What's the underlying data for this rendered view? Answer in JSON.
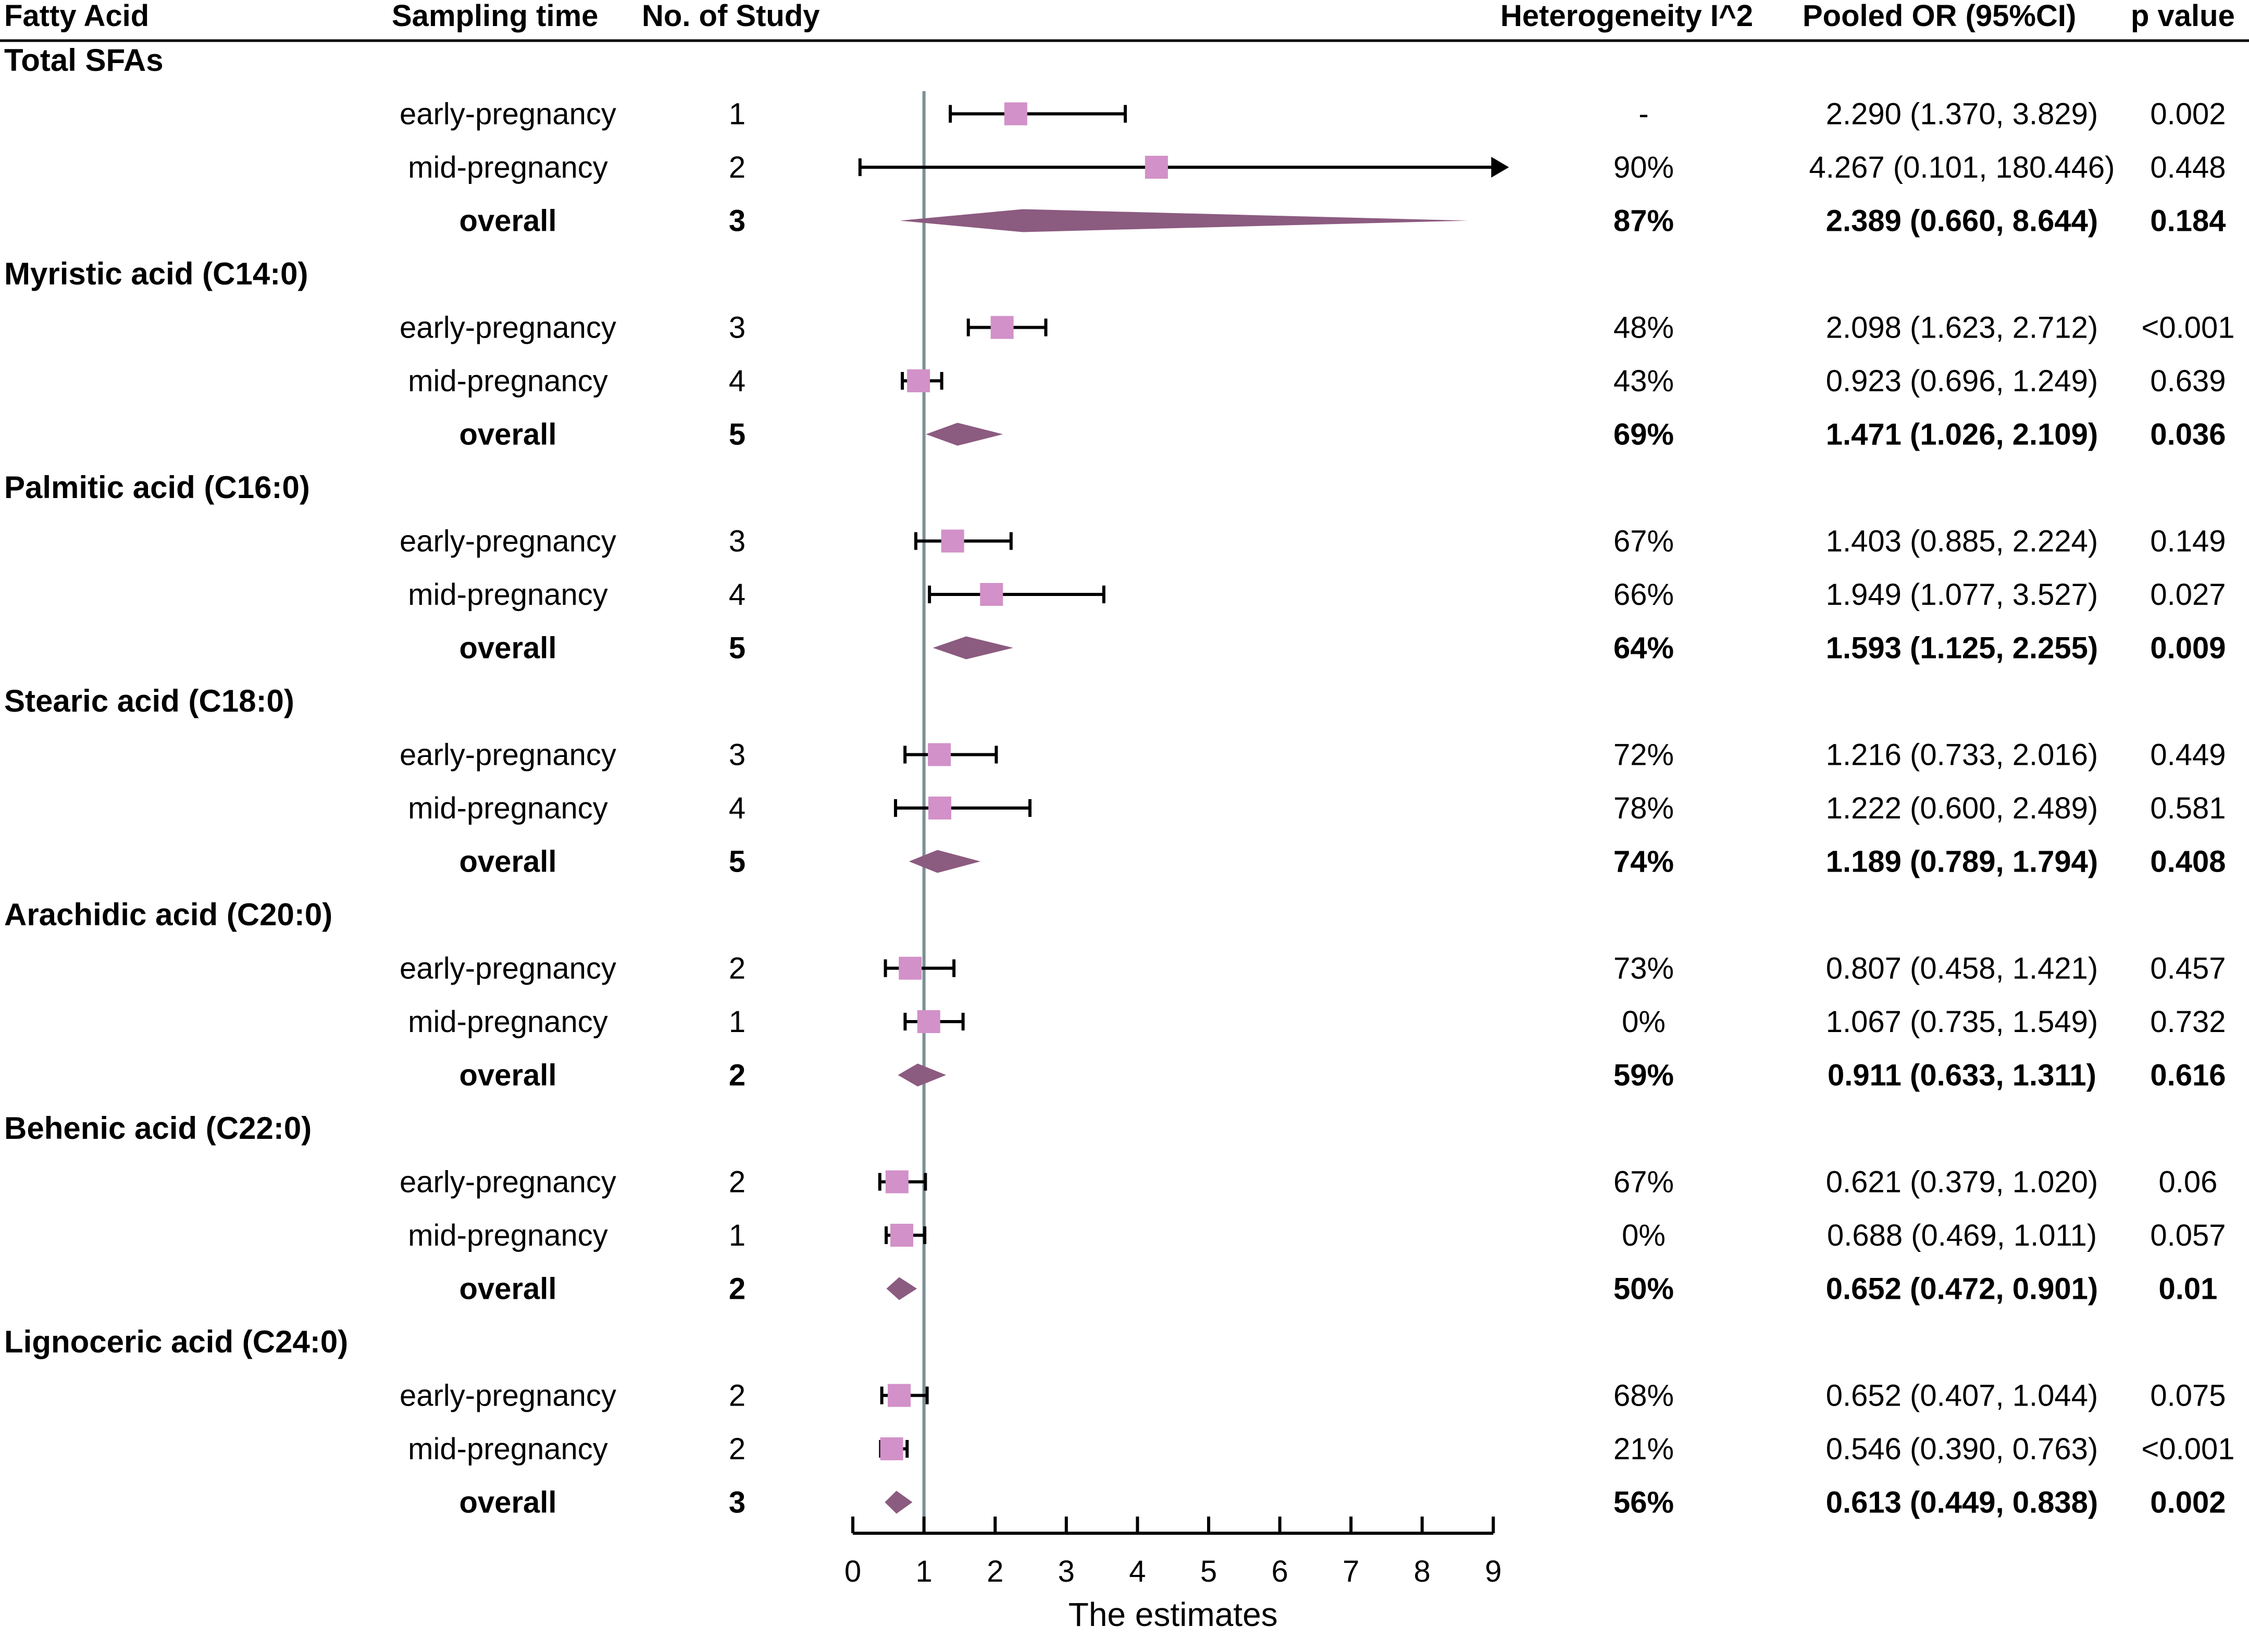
{
  "headers": {
    "fatty_acid": "Fatty Acid",
    "sampling_time": "Sampling time",
    "no_of_study": "No. of Study",
    "heterogeneity": "Heterogeneity I^2",
    "pooled_or": "Pooled OR (95%CI)",
    "p_value": "p value"
  },
  "chart_data": {
    "type": "forest",
    "xlabel": "The estimates",
    "xlim": [
      0,
      9
    ],
    "xticks": [
      "0",
      "1",
      "2",
      "3",
      "4",
      "5",
      "6",
      "7",
      "8",
      "9"
    ],
    "reference_line": 1,
    "colors": {
      "square": "#d291c8",
      "diamond": "#8c5b80",
      "refline": "#7a9095"
    },
    "groups": [
      {
        "name": "Total SFAs",
        "rows": [
          {
            "sampling": "early-pregnancy",
            "n": "1",
            "i2": "-",
            "ci_text": "2.290 (1.370, 3.829)",
            "p": "0.002",
            "est": 2.29,
            "lo": 1.37,
            "hi": 3.829,
            "overall": false
          },
          {
            "sampling": "mid-pregnancy",
            "n": "2",
            "i2": "90%",
            "ci_text": "4.267 (0.101, 180.446)",
            "p": "0.448",
            "est": 4.267,
            "lo": 0.101,
            "hi": 180.446,
            "overall": false
          },
          {
            "sampling": "overall",
            "n": "3",
            "i2": "87%",
            "ci_text": "2.389 (0.660, 8.644)",
            "p": "0.184",
            "est": 2.389,
            "lo": 0.66,
            "hi": 8.644,
            "overall": true
          }
        ]
      },
      {
        "name": "Myristic acid (C14:0)",
        "rows": [
          {
            "sampling": "early-pregnancy",
            "n": "3",
            "i2": "48%",
            "ci_text": "2.098 (1.623, 2.712)",
            "p": "<0.001",
            "est": 2.098,
            "lo": 1.623,
            "hi": 2.712,
            "overall": false
          },
          {
            "sampling": "mid-pregnancy",
            "n": "4",
            "i2": "43%",
            "ci_text": "0.923 (0.696, 1.249)",
            "p": "0.639",
            "est": 0.923,
            "lo": 0.696,
            "hi": 1.249,
            "overall": false
          },
          {
            "sampling": "overall",
            "n": "5",
            "i2": "69%",
            "ci_text": "1.471 (1.026, 2.109)",
            "p": "0.036",
            "est": 1.471,
            "lo": 1.026,
            "hi": 2.109,
            "overall": true
          }
        ]
      },
      {
        "name": "Palmitic acid (C16:0)",
        "rows": [
          {
            "sampling": "early-pregnancy",
            "n": "3",
            "i2": "67%",
            "ci_text": "1.403 (0.885, 2.224)",
            "p": "0.149",
            "est": 1.403,
            "lo": 0.885,
            "hi": 2.224,
            "overall": false
          },
          {
            "sampling": "mid-pregnancy",
            "n": "4",
            "i2": "66%",
            "ci_text": "1.949 (1.077, 3.527)",
            "p": "0.027",
            "est": 1.949,
            "lo": 1.077,
            "hi": 3.527,
            "overall": false
          },
          {
            "sampling": "overall",
            "n": "5",
            "i2": "64%",
            "ci_text": "1.593 (1.125, 2.255)",
            "p": "0.009",
            "est": 1.593,
            "lo": 1.125,
            "hi": 2.255,
            "overall": true
          }
        ]
      },
      {
        "name": "Stearic acid (C18:0)",
        "rows": [
          {
            "sampling": "early-pregnancy",
            "n": "3",
            "i2": "72%",
            "ci_text": "1.216 (0.733, 2.016)",
            "p": "0.449",
            "est": 1.216,
            "lo": 0.733,
            "hi": 2.016,
            "overall": false
          },
          {
            "sampling": "mid-pregnancy",
            "n": "4",
            "i2": "78%",
            "ci_text": "1.222 (0.600, 2.489)",
            "p": "0.581",
            "est": 1.222,
            "lo": 0.6,
            "hi": 2.489,
            "overall": false
          },
          {
            "sampling": "overall",
            "n": "5",
            "i2": "74%",
            "ci_text": "1.189 (0.789, 1.794)",
            "p": "0.408",
            "est": 1.189,
            "lo": 0.789,
            "hi": 1.794,
            "overall": true
          }
        ]
      },
      {
        "name": "Arachidic acid (C20:0)",
        "rows": [
          {
            "sampling": "early-pregnancy",
            "n": "2",
            "i2": "73%",
            "ci_text": "0.807 (0.458, 1.421)",
            "p": "0.457",
            "est": 0.807,
            "lo": 0.458,
            "hi": 1.421,
            "overall": false
          },
          {
            "sampling": "mid-pregnancy",
            "n": "1",
            "i2": "0%",
            "ci_text": "1.067 (0.735, 1.549)",
            "p": "0.732",
            "est": 1.067,
            "lo": 0.735,
            "hi": 1.549,
            "overall": false
          },
          {
            "sampling": "overall",
            "n": "2",
            "i2": "59%",
            "ci_text": "0.911 (0.633, 1.311)",
            "p": "0.616",
            "est": 0.911,
            "lo": 0.633,
            "hi": 1.311,
            "overall": true
          }
        ]
      },
      {
        "name": "Behenic acid (C22:0)",
        "rows": [
          {
            "sampling": "early-pregnancy",
            "n": "2",
            "i2": "67%",
            "ci_text": "0.621 (0.379, 1.020)",
            "p": "0.06",
            "est": 0.621,
            "lo": 0.379,
            "hi": 1.02,
            "overall": false
          },
          {
            "sampling": "mid-pregnancy",
            "n": "1",
            "i2": "0%",
            "ci_text": "0.688 (0.469, 1.011)",
            "p": "0.057",
            "est": 0.688,
            "lo": 0.469,
            "hi": 1.011,
            "overall": false
          },
          {
            "sampling": "overall",
            "n": "2",
            "i2": "50%",
            "ci_text": "0.652 (0.472, 0.901)",
            "p": "0.01",
            "est": 0.652,
            "lo": 0.472,
            "hi": 0.901,
            "overall": true
          }
        ]
      },
      {
        "name": "Lignoceric acid (C24:0)",
        "rows": [
          {
            "sampling": "early-pregnancy",
            "n": "2",
            "i2": "68%",
            "ci_text": "0.652 (0.407, 1.044)",
            "p": "0.075",
            "est": 0.652,
            "lo": 0.407,
            "hi": 1.044,
            "overall": false
          },
          {
            "sampling": "mid-pregnancy",
            "n": "2",
            "i2": "21%",
            "ci_text": "0.546 (0.390, 0.763)",
            "p": "<0.001",
            "est": 0.546,
            "lo": 0.39,
            "hi": 0.763,
            "overall": false
          },
          {
            "sampling": "overall",
            "n": "3",
            "i2": "56%",
            "ci_text": "0.613 (0.449, 0.838)",
            "p": "0.002",
            "est": 0.613,
            "lo": 0.449,
            "hi": 0.838,
            "overall": true
          }
        ]
      }
    ]
  }
}
